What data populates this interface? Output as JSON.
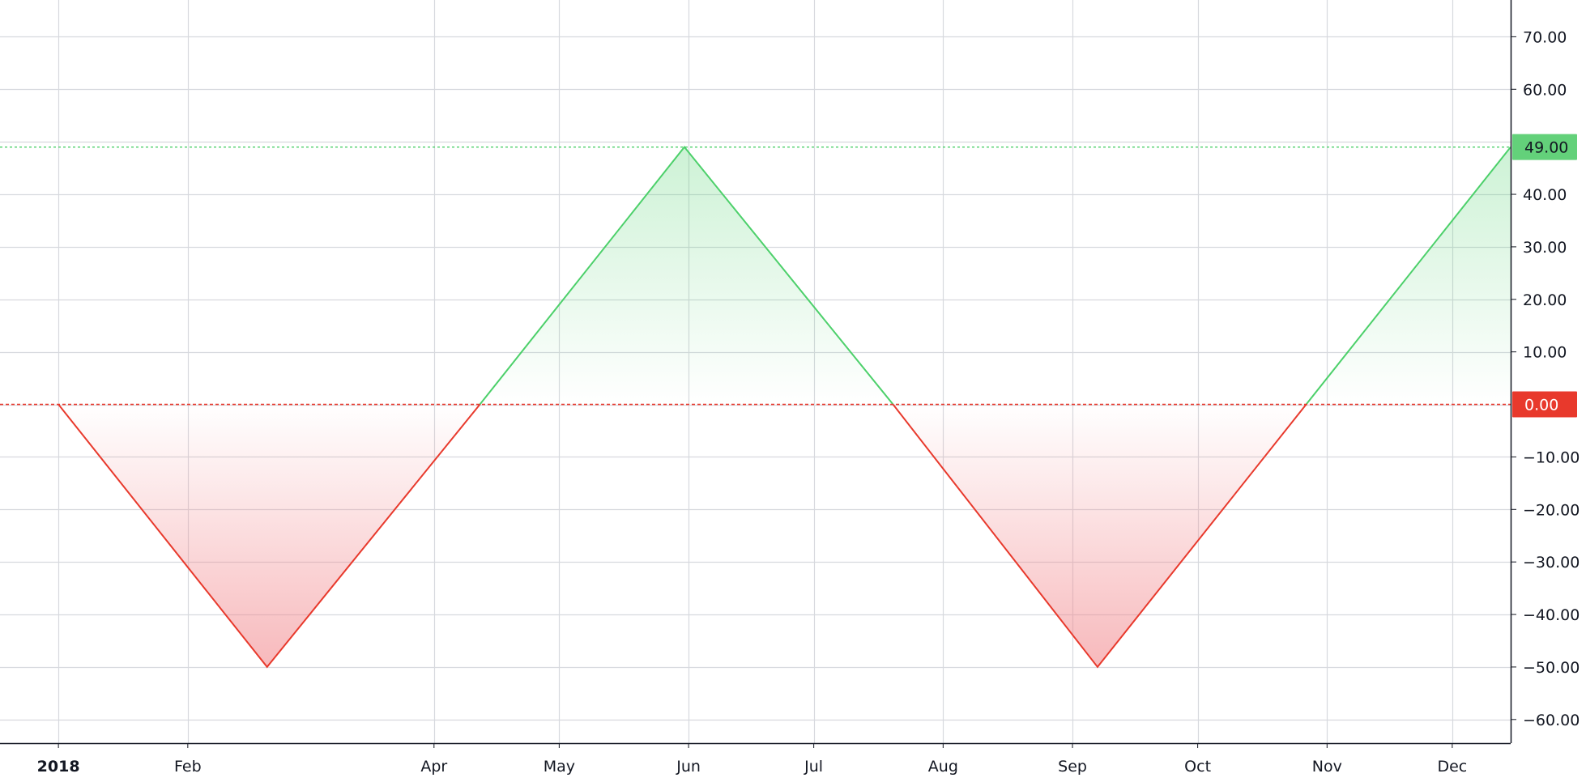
{
  "chart_data": {
    "type": "area",
    "baseline": 0,
    "x": [
      "2018-01-01",
      "2018-02-20",
      "2018-04-12",
      "2018-05-31",
      "2018-07-20",
      "2018-09-07",
      "2018-10-27",
      "2018-12-15"
    ],
    "values": [
      0,
      -50,
      0,
      49,
      0,
      -50,
      0,
      49
    ],
    "x_ticks": [
      {
        "date": "2018-01-01",
        "label": "2018",
        "bold": true
      },
      {
        "date": "2018-02-01",
        "label": "Feb"
      },
      {
        "date": "2018-04-01",
        "label": "Apr"
      },
      {
        "date": "2018-05-01",
        "label": "May"
      },
      {
        "date": "2018-06-01",
        "label": "Jun"
      },
      {
        "date": "2018-07-01",
        "label": "Jul"
      },
      {
        "date": "2018-08-01",
        "label": "Aug"
      },
      {
        "date": "2018-09-01",
        "label": "Sep"
      },
      {
        "date": "2018-10-01",
        "label": "Oct"
      },
      {
        "date": "2018-11-01",
        "label": "Nov"
      },
      {
        "date": "2018-12-01",
        "label": "Dec"
      }
    ],
    "y_ticks": [
      70,
      60,
      40,
      30,
      20,
      10,
      -10,
      -20,
      -30,
      -40,
      -50,
      -60
    ],
    "y_tick_labels": [
      "70.00",
      "60.00",
      "40.00",
      "30.00",
      "20.00",
      "10.00",
      "−10.00",
      "−20.00",
      "−30.00",
      "−40.00",
      "−50.00",
      "−60.00"
    ],
    "grid_y": [
      70,
      60,
      50,
      40,
      30,
      20,
      10,
      0,
      -10,
      -20,
      -30,
      -40,
      -50,
      -60
    ],
    "ylim": [
      -64.5,
      77
    ],
    "xlim": [
      "2017-12-18",
      "2018-12-15"
    ],
    "grid": true,
    "last_value_label": "49.00",
    "baseline_label": "0.00",
    "colors": {
      "up_line": "#4cd06a",
      "down_line": "#e8392c",
      "up_fill": "#4cd06a",
      "down_fill": "#f28a8f",
      "grid": "#d7d9de",
      "axis": "#131722",
      "last_badge_bg": "#63d17a",
      "last_badge_text": "#131722",
      "baseline_badge_bg": "#e8392c",
      "baseline_badge_text": "#ffffff"
    }
  }
}
